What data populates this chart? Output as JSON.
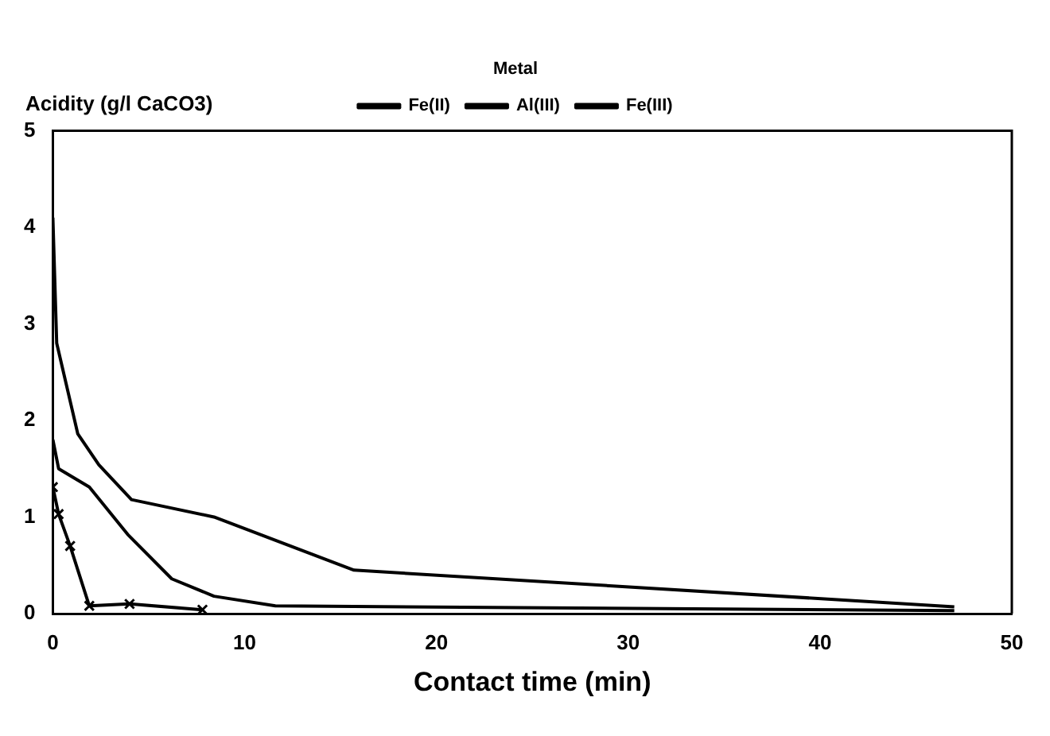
{
  "chart_data": {
    "type": "line",
    "xlabel": "Contact time (min)",
    "ylabel": "Acidity (g/l CaCO3)",
    "legend_title": "Metal",
    "legend": "top",
    "grid": false,
    "marker": "none",
    "line_style": "solid",
    "xlim": [
      0,
      50
    ],
    "xticks": [
      0,
      10,
      20,
      30,
      40,
      50
    ],
    "ylim": [
      0,
      5
    ],
    "yticks": [
      0,
      1,
      2,
      3,
      4,
      5
    ],
    "series": [
      {
        "name": "Fe(II)",
        "color": "#000000",
        "x": [
          0,
          0.2,
          1.3,
          2.4,
          4.1,
          8.4,
          15.7,
          47
        ],
        "values": [
          4.1,
          2.8,
          1.86,
          1.54,
          1.18,
          1.0,
          0.45,
          0.07
        ]
      },
      {
        "name": "Al(III)",
        "color": "#000000",
        "x": [
          0,
          0.3,
          1.9,
          3.9,
          6.2,
          8.4,
          11.6,
          47
        ],
        "values": [
          1.8,
          1.5,
          1.31,
          0.82,
          0.36,
          0.18,
          0.08,
          0.03
        ]
      },
      {
        "name": "Fe(III)",
        "color": "#000000",
        "marker": "cross",
        "x": [
          0,
          0.3,
          0.9,
          1.9,
          4,
          7.8
        ],
        "values": [
          1.31,
          1.03,
          0.7,
          0.08,
          0.1,
          0.04
        ]
      }
    ]
  }
}
